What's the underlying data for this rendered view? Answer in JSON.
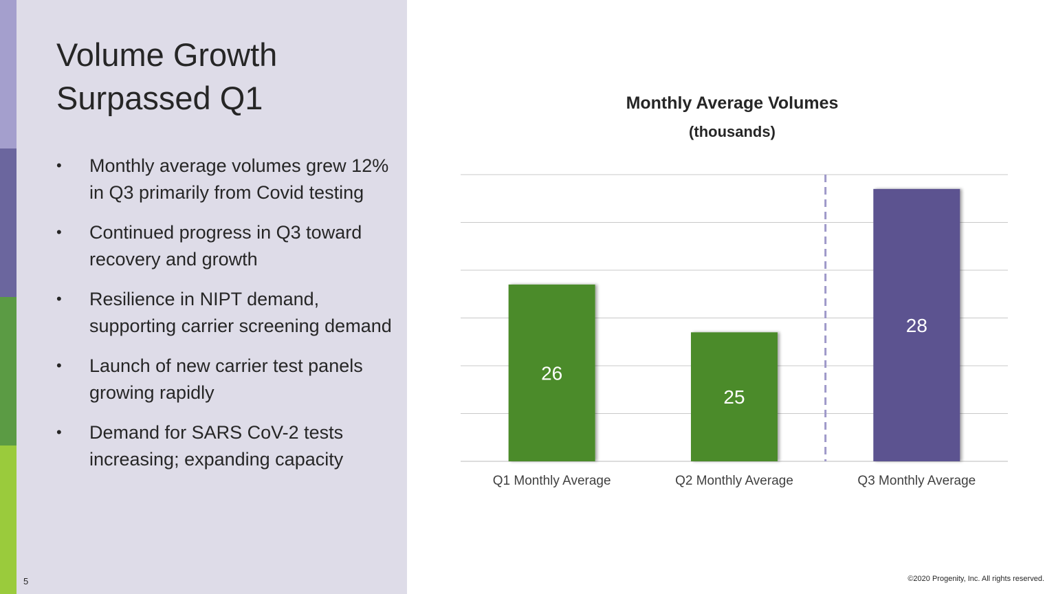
{
  "colors": {
    "strip": [
      "#a49fcd",
      "#6b669e",
      "#5b9b44",
      "#9acb3c"
    ],
    "panel_bg": "#dedce8",
    "q_green": "#4b8b2a",
    "q_purple": "#5c5390",
    "divider": "#9e98c9",
    "grid": "#c8c8c8"
  },
  "slide": {
    "title": "Volume Growth Surpassed Q1",
    "page_number": "5",
    "copyright": "©2020 Progenity, Inc. All rights reserved."
  },
  "bullets": [
    {
      "marker": "•",
      "text": "Monthly average volumes grew 12% in Q3 primarily from Covid testing"
    },
    {
      "marker": "•",
      "text": "Continued progress in Q3 toward recovery and growth"
    },
    {
      "marker": "•",
      "text": "Resilience in NIPT demand, supporting carrier screening demand"
    },
    {
      "marker": "•",
      "text": "Launch of new carrier test panels growing rapidly"
    },
    {
      "marker": "•",
      "text": "Demand for SARS CoV-2 tests increasing; expanding capacity"
    }
  ],
  "chart_data": {
    "type": "bar",
    "title": "Monthly Average Volumes",
    "subtitle": "(thousands)",
    "categories": [
      "Q1 Monthly Average",
      "Q2 Monthly Average",
      "Q3 Monthly Average"
    ],
    "values": [
      26,
      25,
      28
    ],
    "data_labels": [
      "26",
      "25",
      "28"
    ],
    "bar_colors": [
      "#4b8b2a",
      "#4b8b2a",
      "#5c5390"
    ],
    "ylim": [
      22.3,
      28.3
    ],
    "gridlines": [
      23.3,
      24.3,
      25.3,
      26.3,
      27.3,
      28.3
    ],
    "grid": true,
    "divider_between": [
      "Q2 Monthly Average",
      "Q3 Monthly Average"
    ],
    "xlabel": "",
    "ylabel": ""
  }
}
